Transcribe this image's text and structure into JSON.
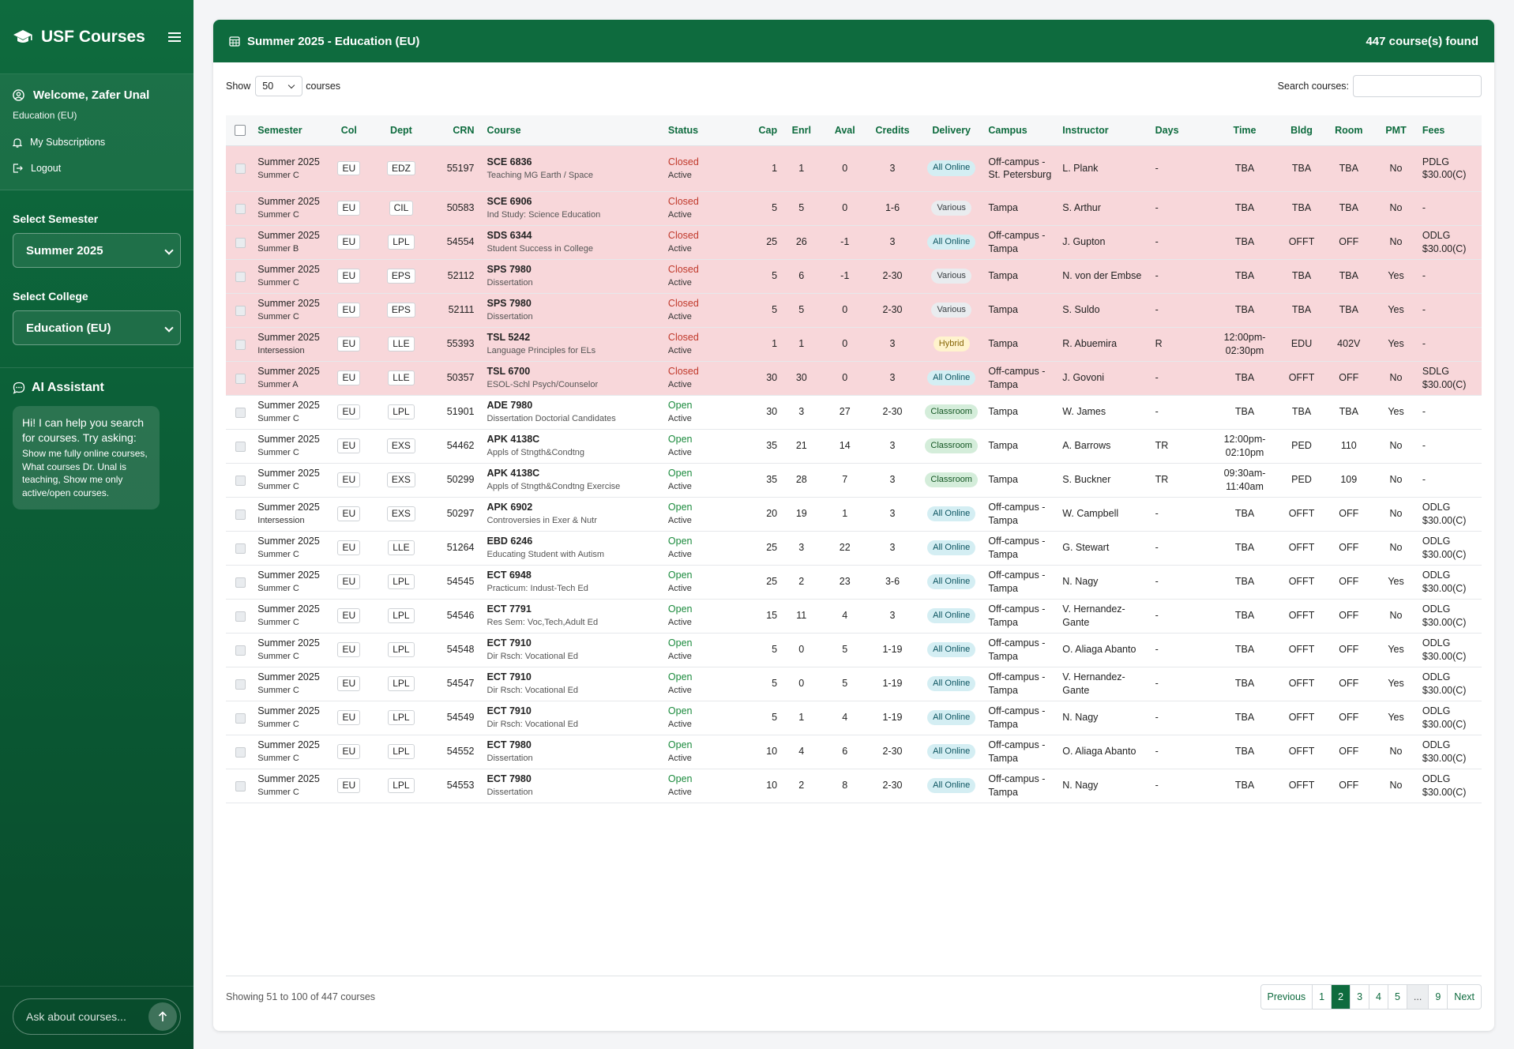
{
  "sidebar": {
    "brand": "USF Courses",
    "welcome": "Welcome, Zafer Unal",
    "user_college": "Education (EU)",
    "links": [
      "My Subscriptions",
      "Logout"
    ],
    "semester_label": "Select Semester",
    "semester_value": "Summer 2025",
    "college_label": "Select College",
    "college_value": "Education (EU)",
    "ai_title": "AI Assistant",
    "ai_intro": "Hi! I can help you search for courses. Try asking:",
    "ai_examples": "Show me fully online courses, What courses Dr. Unal is teaching, Show me only active/open courses.",
    "ask_placeholder": "Ask about courses..."
  },
  "header": {
    "title": "Summer 2025 - Education (EU)",
    "found": "447 course(s) found"
  },
  "controls": {
    "show_label": "Show",
    "show_value": "50",
    "show_suffix": "courses",
    "search_label": "Search courses:"
  },
  "columns": [
    "Semester",
    "Col",
    "Dept",
    "CRN",
    "Course",
    "Status",
    "Cap",
    "Enrl",
    "Aval",
    "Credits",
    "Delivery",
    "Campus",
    "Instructor",
    "Days",
    "Time",
    "Bldg",
    "Room",
    "PMT",
    "Fees"
  ],
  "rows": [
    {
      "sem": "Summer 2025",
      "term": "Summer C",
      "col": "EU",
      "dept": "EDZ",
      "crn": "55197",
      "course": "SCE 6836",
      "ctitle": "Teaching MG Earth / Space",
      "status": "Closed",
      "state": "Active",
      "cap": "1",
      "enrl": "1",
      "aval": "0",
      "credits": "3",
      "delivery": "All Online",
      "campus": "Off-campus - St. Petersburg",
      "instructor": "L. Plank",
      "days": "-",
      "time": "TBA",
      "bldg": "TBA",
      "room": "TBA",
      "pmt": "No",
      "fees": "PDLG $30.00(C)"
    },
    {
      "sem": "Summer 2025",
      "term": "Summer C",
      "col": "EU",
      "dept": "CIL",
      "crn": "50583",
      "course": "SCE 6906",
      "ctitle": "Ind Study: Science Education",
      "status": "Closed",
      "state": "Active",
      "cap": "5",
      "enrl": "5",
      "aval": "0",
      "credits": "1-6",
      "delivery": "Various",
      "campus": "Tampa",
      "instructor": "S. Arthur",
      "days": "-",
      "time": "TBA",
      "bldg": "TBA",
      "room": "TBA",
      "pmt": "No",
      "fees": "-"
    },
    {
      "sem": "Summer 2025",
      "term": "Summer B",
      "col": "EU",
      "dept": "LPL",
      "crn": "54554",
      "course": "SDS 6344",
      "ctitle": "Student Success in College",
      "status": "Closed",
      "state": "Active",
      "cap": "25",
      "enrl": "26",
      "aval": "-1",
      "credits": "3",
      "delivery": "All Online",
      "campus": "Off-campus - Tampa",
      "instructor": "J. Gupton",
      "days": "-",
      "time": "TBA",
      "bldg": "OFFT",
      "room": "OFF",
      "pmt": "No",
      "fees": "ODLG $30.00(C)"
    },
    {
      "sem": "Summer 2025",
      "term": "Summer C",
      "col": "EU",
      "dept": "EPS",
      "crn": "52112",
      "course": "SPS 7980",
      "ctitle": "Dissertation",
      "status": "Closed",
      "state": "Active",
      "cap": "5",
      "enrl": "6",
      "aval": "-1",
      "credits": "2-30",
      "delivery": "Various",
      "campus": "Tampa",
      "instructor": "N. von der Embse",
      "days": "-",
      "time": "TBA",
      "bldg": "TBA",
      "room": "TBA",
      "pmt": "Yes",
      "fees": "-"
    },
    {
      "sem": "Summer 2025",
      "term": "Summer C",
      "col": "EU",
      "dept": "EPS",
      "crn": "52111",
      "course": "SPS 7980",
      "ctitle": "Dissertation",
      "status": "Closed",
      "state": "Active",
      "cap": "5",
      "enrl": "5",
      "aval": "0",
      "credits": "2-30",
      "delivery": "Various",
      "campus": "Tampa",
      "instructor": "S. Suldo",
      "days": "-",
      "time": "TBA",
      "bldg": "TBA",
      "room": "TBA",
      "pmt": "Yes",
      "fees": "-"
    },
    {
      "sem": "Summer 2025",
      "term": "Intersession",
      "col": "EU",
      "dept": "LLE",
      "crn": "55393",
      "course": "TSL 5242",
      "ctitle": "Language Principles for ELs",
      "status": "Closed",
      "state": "Active",
      "cap": "1",
      "enrl": "1",
      "aval": "0",
      "credits": "3",
      "delivery": "Hybrid",
      "campus": "Tampa",
      "instructor": "R. Abuemira",
      "days": "R",
      "time": "12:00pm-02:30pm",
      "bldg": "EDU",
      "room": "402V",
      "pmt": "Yes",
      "fees": "-"
    },
    {
      "sem": "Summer 2025",
      "term": "Summer A",
      "col": "EU",
      "dept": "LLE",
      "crn": "50357",
      "course": "TSL 6700",
      "ctitle": "ESOL-Schl Psych/Counselor",
      "status": "Closed",
      "state": "Active",
      "cap": "30",
      "enrl": "30",
      "aval": "0",
      "credits": "3",
      "delivery": "All Online",
      "campus": "Off-campus - Tampa",
      "instructor": "J. Govoni",
      "days": "-",
      "time": "TBA",
      "bldg": "OFFT",
      "room": "OFF",
      "pmt": "No",
      "fees": "SDLG $30.00(C)"
    },
    {
      "sem": "Summer 2025",
      "term": "Summer C",
      "col": "EU",
      "dept": "LPL",
      "crn": "51901",
      "course": "ADE 7980",
      "ctitle": "Dissertation Doctorial Candidates",
      "status": "Open",
      "state": "Active",
      "cap": "30",
      "enrl": "3",
      "aval": "27",
      "credits": "2-30",
      "delivery": "Classroom",
      "campus": "Tampa",
      "instructor": "W. James",
      "days": "-",
      "time": "TBA",
      "bldg": "TBA",
      "room": "TBA",
      "pmt": "Yes",
      "fees": "-"
    },
    {
      "sem": "Summer 2025",
      "term": "Summer C",
      "col": "EU",
      "dept": "EXS",
      "crn": "54462",
      "course": "APK 4138C",
      "ctitle": "Appls of Stngth&Condtng",
      "status": "Open",
      "state": "Active",
      "cap": "35",
      "enrl": "21",
      "aval": "14",
      "credits": "3",
      "delivery": "Classroom",
      "campus": "Tampa",
      "instructor": "A. Barrows",
      "days": "TR",
      "time": "12:00pm-02:10pm",
      "bldg": "PED",
      "room": "110",
      "pmt": "No",
      "fees": "-"
    },
    {
      "sem": "Summer 2025",
      "term": "Summer C",
      "col": "EU",
      "dept": "EXS",
      "crn": "50299",
      "course": "APK 4138C",
      "ctitle": "Appls of Stngth&Condtng Exercise",
      "status": "Open",
      "state": "Active",
      "cap": "35",
      "enrl": "28",
      "aval": "7",
      "credits": "3",
      "delivery": "Classroom",
      "campus": "Tampa",
      "instructor": "S. Buckner",
      "days": "TR",
      "time": "09:30am-11:40am",
      "bldg": "PED",
      "room": "109",
      "pmt": "No",
      "fees": "-"
    },
    {
      "sem": "Summer 2025",
      "term": "Intersession",
      "col": "EU",
      "dept": "EXS",
      "crn": "50297",
      "course": "APK 6902",
      "ctitle": "Controversies in Exer & Nutr",
      "status": "Open",
      "state": "Active",
      "cap": "20",
      "enrl": "19",
      "aval": "1",
      "credits": "3",
      "delivery": "All Online",
      "campus": "Off-campus - Tampa",
      "instructor": "W. Campbell",
      "days": "-",
      "time": "TBA",
      "bldg": "OFFT",
      "room": "OFF",
      "pmt": "No",
      "fees": "ODLG $30.00(C)"
    },
    {
      "sem": "Summer 2025",
      "term": "Summer C",
      "col": "EU",
      "dept": "LLE",
      "crn": "51264",
      "course": "EBD 6246",
      "ctitle": "Educating Student with Autism",
      "status": "Open",
      "state": "Active",
      "cap": "25",
      "enrl": "3",
      "aval": "22",
      "credits": "3",
      "delivery": "All Online",
      "campus": "Off-campus - Tampa",
      "instructor": "G. Stewart",
      "days": "-",
      "time": "TBA",
      "bldg": "OFFT",
      "room": "OFF",
      "pmt": "No",
      "fees": "ODLG $30.00(C)"
    },
    {
      "sem": "Summer 2025",
      "term": "Summer C",
      "col": "EU",
      "dept": "LPL",
      "crn": "54545",
      "course": "ECT 6948",
      "ctitle": "Practicum: Indust-Tech Ed",
      "status": "Open",
      "state": "Active",
      "cap": "25",
      "enrl": "2",
      "aval": "23",
      "credits": "3-6",
      "delivery": "All Online",
      "campus": "Off-campus - Tampa",
      "instructor": "N. Nagy",
      "days": "-",
      "time": "TBA",
      "bldg": "OFFT",
      "room": "OFF",
      "pmt": "Yes",
      "fees": "ODLG $30.00(C)"
    },
    {
      "sem": "Summer 2025",
      "term": "Summer C",
      "col": "EU",
      "dept": "LPL",
      "crn": "54546",
      "course": "ECT 7791",
      "ctitle": "Res Sem: Voc,Tech,Adult Ed",
      "status": "Open",
      "state": "Active",
      "cap": "15",
      "enrl": "11",
      "aval": "4",
      "credits": "3",
      "delivery": "All Online",
      "campus": "Off-campus - Tampa",
      "instructor": "V. Hernandez-Gante",
      "days": "-",
      "time": "TBA",
      "bldg": "OFFT",
      "room": "OFF",
      "pmt": "No",
      "fees": "ODLG $30.00(C)"
    },
    {
      "sem": "Summer 2025",
      "term": "Summer C",
      "col": "EU",
      "dept": "LPL",
      "crn": "54548",
      "course": "ECT 7910",
      "ctitle": "Dir Rsch: Vocational Ed",
      "status": "Open",
      "state": "Active",
      "cap": "5",
      "enrl": "0",
      "aval": "5",
      "credits": "1-19",
      "delivery": "All Online",
      "campus": "Off-campus - Tampa",
      "instructor": "O. Aliaga Abanto",
      "days": "-",
      "time": "TBA",
      "bldg": "OFFT",
      "room": "OFF",
      "pmt": "Yes",
      "fees": "ODLG $30.00(C)"
    },
    {
      "sem": "Summer 2025",
      "term": "Summer C",
      "col": "EU",
      "dept": "LPL",
      "crn": "54547",
      "course": "ECT 7910",
      "ctitle": "Dir Rsch: Vocational Ed",
      "status": "Open",
      "state": "Active",
      "cap": "5",
      "enrl": "0",
      "aval": "5",
      "credits": "1-19",
      "delivery": "All Online",
      "campus": "Off-campus - Tampa",
      "instructor": "V. Hernandez-Gante",
      "days": "-",
      "time": "TBA",
      "bldg": "OFFT",
      "room": "OFF",
      "pmt": "Yes",
      "fees": "ODLG $30.00(C)"
    },
    {
      "sem": "Summer 2025",
      "term": "Summer C",
      "col": "EU",
      "dept": "LPL",
      "crn": "54549",
      "course": "ECT 7910",
      "ctitle": "Dir Rsch: Vocational Ed",
      "status": "Open",
      "state": "Active",
      "cap": "5",
      "enrl": "1",
      "aval": "4",
      "credits": "1-19",
      "delivery": "All Online",
      "campus": "Off-campus - Tampa",
      "instructor": "N. Nagy",
      "days": "-",
      "time": "TBA",
      "bldg": "OFFT",
      "room": "OFF",
      "pmt": "Yes",
      "fees": "ODLG $30.00(C)"
    },
    {
      "sem": "Summer 2025",
      "term": "Summer C",
      "col": "EU",
      "dept": "LPL",
      "crn": "54552",
      "course": "ECT 7980",
      "ctitle": "Dissertation",
      "status": "Open",
      "state": "Active",
      "cap": "10",
      "enrl": "4",
      "aval": "6",
      "credits": "2-30",
      "delivery": "All Online",
      "campus": "Off-campus - Tampa",
      "instructor": "O. Aliaga Abanto",
      "days": "-",
      "time": "TBA",
      "bldg": "OFFT",
      "room": "OFF",
      "pmt": "No",
      "fees": "ODLG $30.00(C)"
    },
    {
      "sem": "Summer 2025",
      "term": "Summer C",
      "col": "EU",
      "dept": "LPL",
      "crn": "54553",
      "course": "ECT 7980",
      "ctitle": "Dissertation",
      "status": "Open",
      "state": "Active",
      "cap": "10",
      "enrl": "2",
      "aval": "8",
      "credits": "2-30",
      "delivery": "All Online",
      "campus": "Off-campus - Tampa",
      "instructor": "N. Nagy",
      "days": "-",
      "time": "TBA",
      "bldg": "OFFT",
      "room": "OFF",
      "pmt": "No",
      "fees": "ODLG $30.00(C)"
    }
  ],
  "footer": {
    "showing": "Showing 51 to 100 of 447 courses",
    "pages": [
      "Previous",
      "1",
      "2",
      "3",
      "4",
      "5",
      "...",
      "9",
      "Next"
    ],
    "active_page": "2"
  },
  "colors": {
    "brand": "#0e6b3e",
    "closed_row": "#f8d7da",
    "open": "#1a8a3c",
    "closed": "#c0392b"
  }
}
